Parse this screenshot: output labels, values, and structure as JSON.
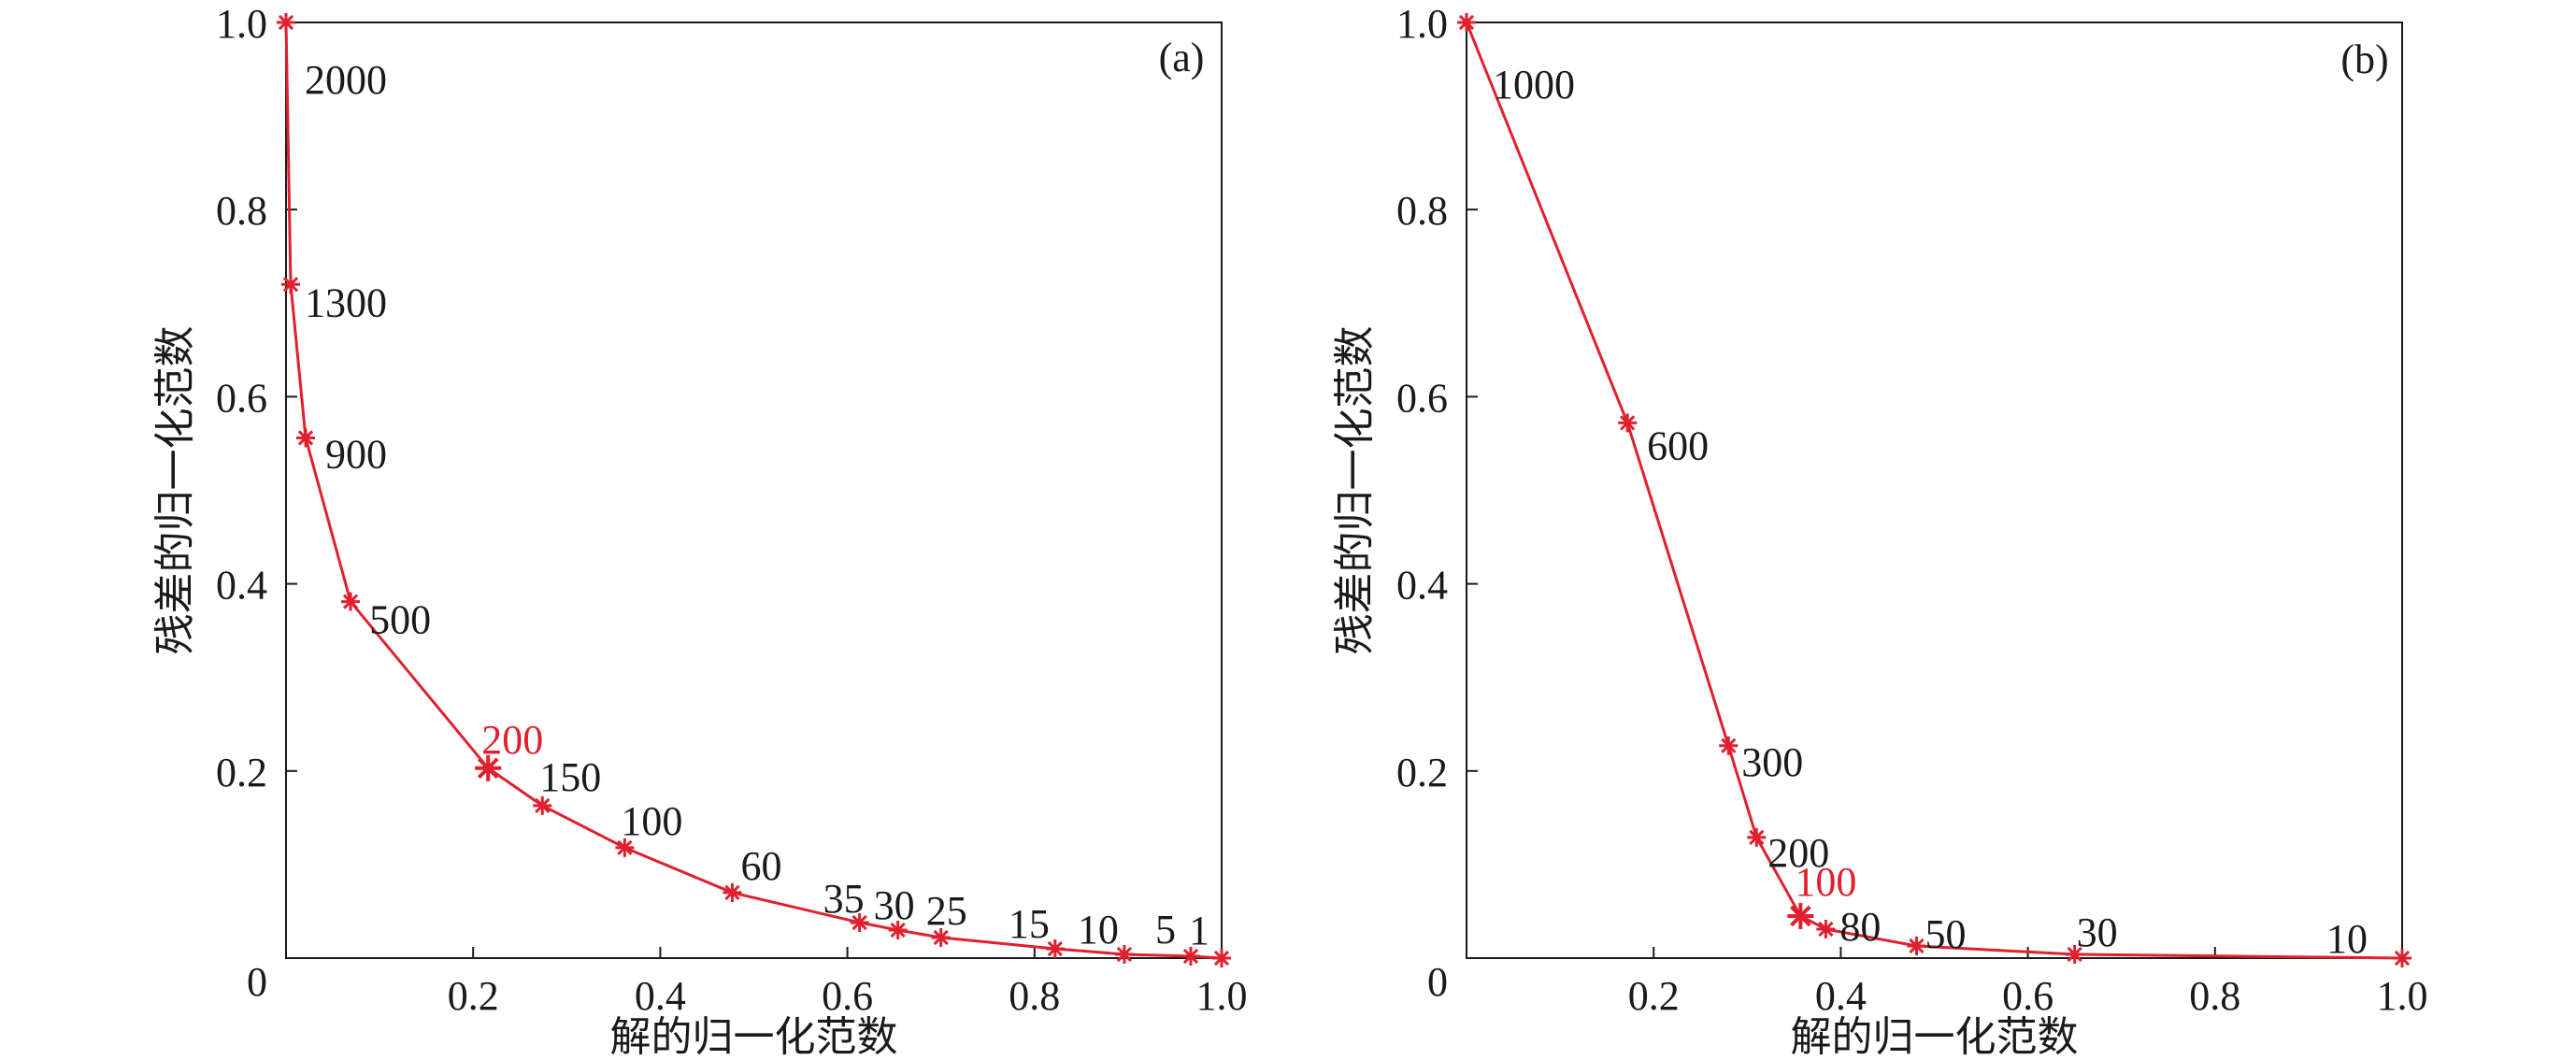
{
  "colors": {
    "series": "#e0202e",
    "axis": "#1a1a1a",
    "highlight_label": "#e0202e"
  },
  "chart_data": [
    {
      "type": "line",
      "panel_label": "(a)",
      "xlabel": "解的归一化范数",
      "ylabel": "残差的归一化范数",
      "xlim": [
        0,
        1.0
      ],
      "ylim": [
        0,
        1.0
      ],
      "x_ticks": [
        "0.2",
        "0.4",
        "0.6",
        "0.8",
        "1.0"
      ],
      "y_ticks": [
        "0",
        "0.2",
        "0.4",
        "0.6",
        "0.8",
        "1.0"
      ],
      "grid": false,
      "points": [
        {
          "label": "2000",
          "x": 0.0,
          "y": 1.0
        },
        {
          "label": "1300",
          "x": 0.005,
          "y": 0.72
        },
        {
          "label": "900",
          "x": 0.021,
          "y": 0.556
        },
        {
          "label": "500",
          "x": 0.069,
          "y": 0.381
        },
        {
          "label": "200",
          "x": 0.216,
          "y": 0.203,
          "highlight": true
        },
        {
          "label": "150",
          "x": 0.274,
          "y": 0.163
        },
        {
          "label": "100",
          "x": 0.362,
          "y": 0.118
        },
        {
          "label": "60",
          "x": 0.477,
          "y": 0.07
        },
        {
          "label": "35",
          "x": 0.613,
          "y": 0.038
        },
        {
          "label": "30",
          "x": 0.654,
          "y": 0.03
        },
        {
          "label": "25",
          "x": 0.7,
          "y": 0.022
        },
        {
          "label": "15",
          "x": 0.822,
          "y": 0.01
        },
        {
          "label": "10",
          "x": 0.896,
          "y": 0.004
        },
        {
          "label": "5",
          "x": 0.967,
          "y": 0.002
        },
        {
          "label": "1",
          "x": 1.0,
          "y": 0.0
        }
      ]
    },
    {
      "type": "line",
      "panel_label": "(b)",
      "xlabel": "解的归一化范数",
      "ylabel": "残差的归一化范数",
      "xlim": [
        0,
        1.0
      ],
      "ylim": [
        0,
        1.0
      ],
      "x_ticks": [
        "0.2",
        "0.4",
        "0.6",
        "0.8",
        "1.0"
      ],
      "y_ticks": [
        "0",
        "0.2",
        "0.4",
        "0.6",
        "0.8",
        "1.0"
      ],
      "grid": false,
      "points": [
        {
          "label": "1000",
          "x": 0.0,
          "y": 1.0
        },
        {
          "label": "600",
          "x": 0.172,
          "y": 0.572
        },
        {
          "label": "300",
          "x": 0.28,
          "y": 0.227
        },
        {
          "label": "200",
          "x": 0.31,
          "y": 0.129
        },
        {
          "label": "100",
          "x": 0.357,
          "y": 0.045,
          "highlight": true
        },
        {
          "label": "80",
          "x": 0.384,
          "y": 0.031
        },
        {
          "label": "50",
          "x": 0.481,
          "y": 0.013
        },
        {
          "label": "30",
          "x": 0.65,
          "y": 0.004
        },
        {
          "label": "10",
          "x": 1.0,
          "y": 0.0
        }
      ]
    }
  ]
}
